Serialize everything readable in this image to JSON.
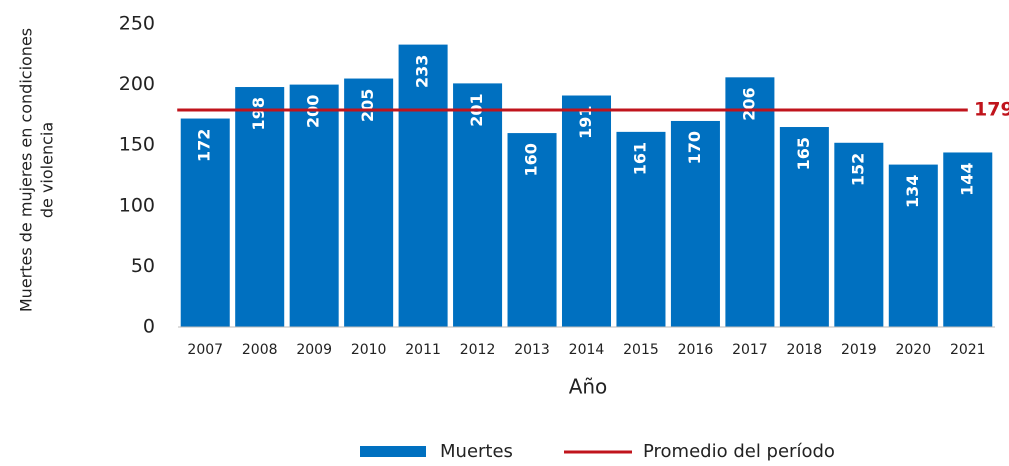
{
  "chart_data": {
    "type": "bar",
    "ylabel": [
      "Muertes de mujeres en condiciones",
      "de violencia"
    ],
    "xlabel": "Año",
    "categories": [
      "2007",
      "2008",
      "2009",
      "2010",
      "2011",
      "2012",
      "2013",
      "2014",
      "2015",
      "2016",
      "2017",
      "2018",
      "2019",
      "2020",
      "2021"
    ],
    "series": [
      {
        "name": "Muertes",
        "color": "#0070c0",
        "values": [
          172,
          198,
          200,
          205,
          233,
          201,
          160,
          191,
          161,
          170,
          206,
          165,
          152,
          134,
          144
        ]
      }
    ],
    "reference_line": {
      "name": "Promedio del período",
      "value": 179,
      "color": "#c0141c"
    },
    "ylim": [
      0,
      250
    ],
    "yticks": [
      0,
      50,
      100,
      150,
      200,
      250
    ],
    "grid": false,
    "legend": "bottom"
  }
}
